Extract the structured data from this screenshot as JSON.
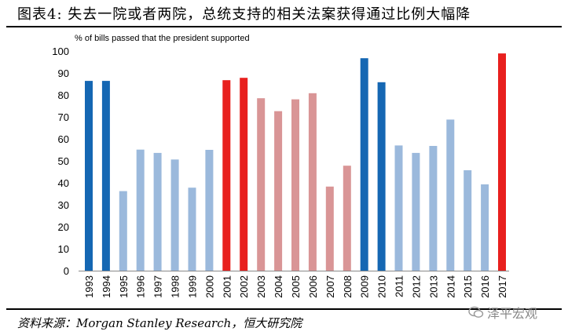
{
  "title": "图表4:  失去一院或者两院，总统支持的相关法案获得通过比例大幅降",
  "source": "资料来源：Morgan Stanley Research，恒大研究院",
  "watermark": "泽平宏观",
  "colors": {
    "dark_blue": "#1567b3",
    "light_blue": "#9bb9dc",
    "red": "#e8201e",
    "light_red": "#d99596"
  },
  "chart_data": {
    "type": "bar",
    "ylabel": "% of bills passed that the president supported",
    "ylim": [
      0,
      100
    ],
    "yticks": [
      0,
      10,
      20,
      30,
      40,
      50,
      60,
      70,
      80,
      90,
      100
    ],
    "grid": false,
    "categories": [
      "1993",
      "1994",
      "1995",
      "1996",
      "1997",
      "1998",
      "1999",
      "2000",
      "2001",
      "2002",
      "2003",
      "2004",
      "2005",
      "2006",
      "2007",
      "2008",
      "2009",
      "2010",
      "2011",
      "2012",
      "2013",
      "2014",
      "2015",
      "2016",
      "2017"
    ],
    "values": [
      86.4,
      86.4,
      36.2,
      55.1,
      53.6,
      50.6,
      37.8,
      55.0,
      86.7,
      87.8,
      78.5,
      72.6,
      78.0,
      80.8,
      38.3,
      47.8,
      96.7,
      85.8,
      57.0,
      53.6,
      56.8,
      68.8,
      45.7,
      39.3,
      98.9
    ],
    "bar_colors": [
      "dark_blue",
      "dark_blue",
      "light_blue",
      "light_blue",
      "light_blue",
      "light_blue",
      "light_blue",
      "light_blue",
      "red",
      "red",
      "light_red",
      "light_red",
      "light_red",
      "light_red",
      "light_red",
      "light_red",
      "dark_blue",
      "dark_blue",
      "light_blue",
      "light_blue",
      "light_blue",
      "light_blue",
      "light_blue",
      "light_blue",
      "red"
    ]
  }
}
